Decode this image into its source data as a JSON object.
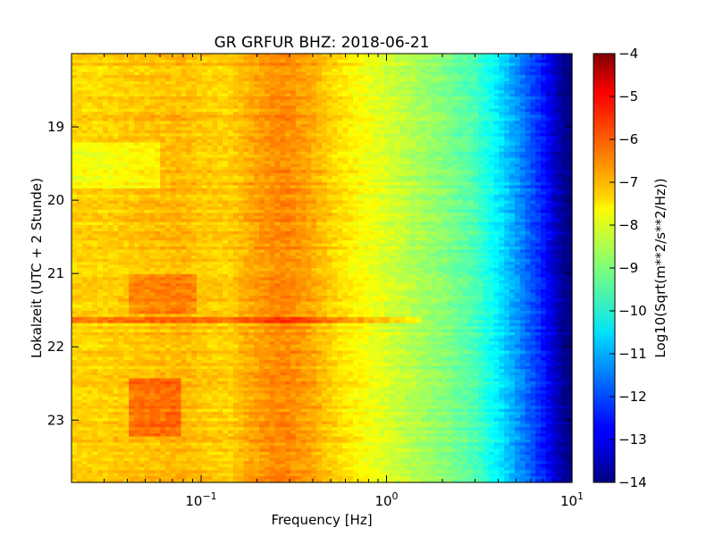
{
  "chart_data": {
    "type": "heatmap",
    "title": "GR GRFUR BHZ: 2018-06-21",
    "xlabel": "Frequency [Hz]",
    "ylabel": "Lokalzeit (UTC + 2 Stunde)",
    "colorbar_label": "Log10(Sqrt(m**2/s**2/Hz))",
    "x_scale": "log",
    "xlim": [
      0.02,
      10
    ],
    "x_ticks": [
      {
        "value": 0.1,
        "base": "10",
        "exp": "−1"
      },
      {
        "value": 1,
        "base": "10",
        "exp": "0"
      },
      {
        "value": 10,
        "base": "10",
        "exp": "1"
      }
    ],
    "ylim_hours": [
      18.0,
      23.85
    ],
    "y_inverted": true,
    "y_ticks": [
      {
        "value": 19,
        "label": "19"
      },
      {
        "value": 20,
        "label": "20"
      },
      {
        "value": 21,
        "label": "21"
      },
      {
        "value": 22,
        "label": "22"
      },
      {
        "value": 23,
        "label": "23"
      }
    ],
    "colormap": "jet",
    "color_range": [
      -14,
      -4
    ],
    "colorbar_ticks": [
      {
        "value": -4,
        "label": "−4"
      },
      {
        "value": -5,
        "label": "−5"
      },
      {
        "value": -6,
        "label": "−6"
      },
      {
        "value": -7,
        "label": "−7"
      },
      {
        "value": -8,
        "label": "−8"
      },
      {
        "value": -9,
        "label": "−9"
      },
      {
        "value": -10,
        "label": "−10"
      },
      {
        "value": -11,
        "label": "−11"
      },
      {
        "value": -12,
        "label": "−12"
      },
      {
        "value": -13,
        "label": "−13"
      },
      {
        "value": -14,
        "label": "−14"
      }
    ],
    "frequency_bins_hz": [
      0.02,
      0.03,
      0.04,
      0.06,
      0.08,
      0.1,
      0.14,
      0.2,
      0.25,
      0.3,
      0.4,
      0.5,
      0.7,
      1.0,
      1.4,
      2.0,
      3.0,
      4.0,
      5.0,
      6.0,
      7.0,
      8.0,
      9.0,
      10.0
    ],
    "spectrum_profile_log10": [
      -7.3,
      -7.3,
      -7.2,
      -7.1,
      -7.05,
      -7.2,
      -7.3,
      -6.8,
      -6.6,
      -6.6,
      -6.9,
      -7.3,
      -7.7,
      -8.1,
      -8.5,
      -8.9,
      -9.5,
      -10.4,
      -11.2,
      -11.9,
      -12.5,
      -13.2,
      -13.8,
      -14.0
    ],
    "time_bins": 140,
    "events": [
      {
        "start_hour": 21.0,
        "end_hour": 21.55,
        "fmin_hz": 0.04,
        "fmax_hz": 0.095,
        "delta_log10": 0.55
      },
      {
        "start_hour": 21.58,
        "end_hour": 21.64,
        "fmin_hz": 0.02,
        "fmax_hz": 1.5,
        "delta_log10": 0.9
      },
      {
        "start_hour": 22.4,
        "end_hour": 23.2,
        "fmin_hz": 0.04,
        "fmax_hz": 0.08,
        "delta_log10": 0.8
      },
      {
        "start_hour": 19.2,
        "end_hour": 19.8,
        "fmin_hz": 0.02,
        "fmax_hz": 0.06,
        "delta_log10": -0.5
      }
    ]
  }
}
